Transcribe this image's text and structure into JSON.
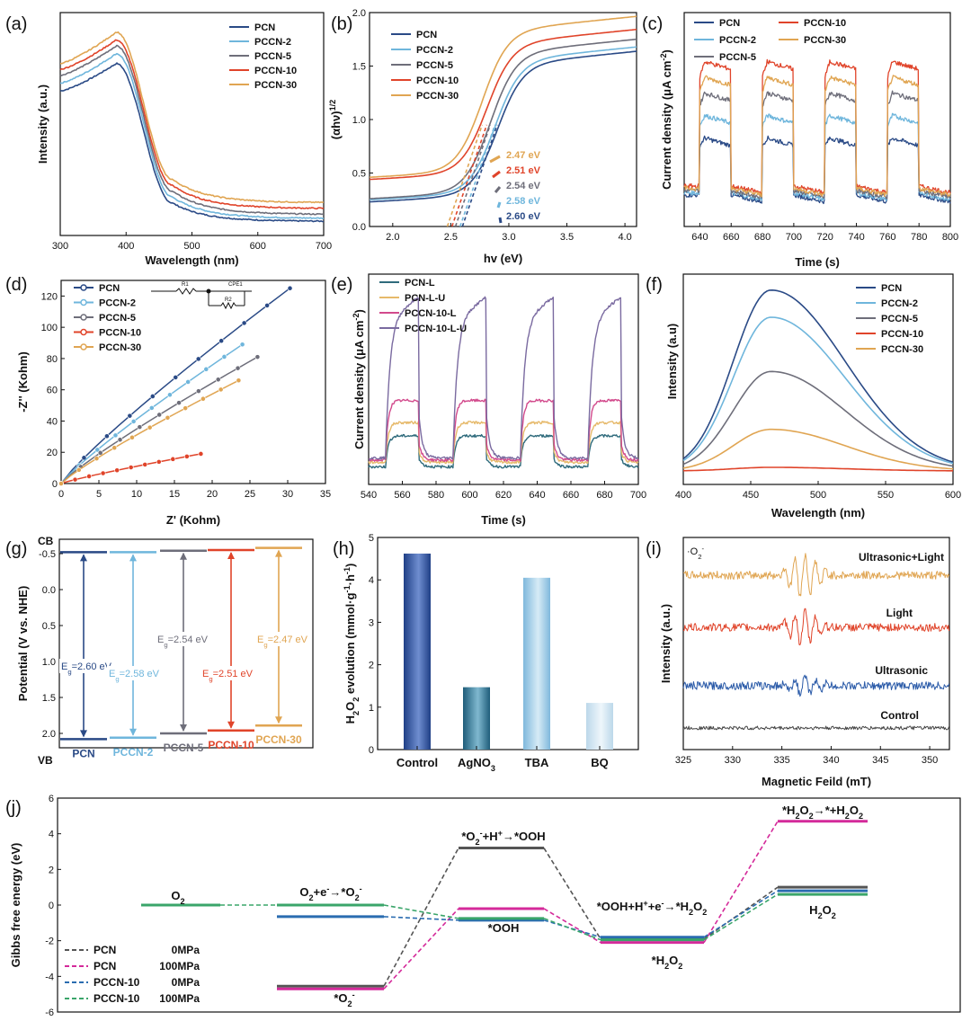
{
  "colors": {
    "PCN": "#2a4a86",
    "PCCN-2": "#6fb6dc",
    "PCCN-5": "#6e6e7a",
    "PCCN-10": "#e0442a",
    "PCCN-30": "#e0a552",
    "PCN-L": "#2f6b7c",
    "PCN-L-U": "#e6b96a",
    "PCCN-10-L": "#d24a8c",
    "PCCN-10-L-U": "#7a6aa0",
    "green": "#3aa56a",
    "magenta": "#d42a9a",
    "blue": "#2a6cb0",
    "gray": "#555555"
  },
  "chart_data": [
    {
      "panel": "(a)",
      "type": "line",
      "xlabel": "Wavelength (nm)",
      "ylabel": "Intensity (a.u.)",
      "xlim": [
        300,
        700
      ],
      "xticks": [
        300,
        400,
        500,
        600,
        700
      ],
      "legend": [
        "PCN",
        "PCCN-2",
        "PCCN-5",
        "PCCN-10",
        "PCCN-30"
      ],
      "series": [
        {
          "name": "PCN",
          "values": [
            0.68,
            0.82,
            0.0,
            0.06,
            0.03,
            0.015
          ]
        },
        {
          "name": "PCCN-2",
          "values": [
            0.72,
            0.87,
            0.0,
            0.09,
            0.05,
            0.03
          ]
        },
        {
          "name": "PCCN-5",
          "values": [
            0.76,
            0.91,
            0.0,
            0.12,
            0.07,
            0.05
          ]
        },
        {
          "name": "PCCN-10",
          "values": [
            0.79,
            0.94,
            0.0,
            0.15,
            0.1,
            0.08
          ]
        },
        {
          "name": "PCCN-30",
          "values": [
            0.82,
            0.98,
            0.0,
            0.18,
            0.13,
            0.11
          ]
        }
      ]
    },
    {
      "panel": "(b)",
      "type": "line",
      "xlabel": "hv (eV)",
      "ylabel": "(αhv)1/2",
      "xlim": [
        1.8,
        4.1
      ],
      "ylim": [
        0,
        2.0
      ],
      "xticks": [
        2.0,
        2.5,
        3.0,
        3.5,
        4.0
      ],
      "yticks": [
        0.0,
        0.5,
        1.0,
        1.5,
        2.0
      ],
      "legend": [
        "PCN",
        "PCCN-2",
        "PCCN-5",
        "PCCN-10",
        "PCCN-30"
      ],
      "series": [
        {
          "name": "PCN",
          "low": 0.23,
          "high": 1.56,
          "bandgap": 2.6
        },
        {
          "name": "PCCN-2",
          "low": 0.25,
          "high": 1.6,
          "bandgap": 2.58
        },
        {
          "name": "PCCN-5",
          "low": 0.26,
          "high": 1.67,
          "bandgap": 2.54
        },
        {
          "name": "PCCN-10",
          "low": 0.44,
          "high": 1.76,
          "bandgap": 2.51
        },
        {
          "name": "PCCN-30",
          "low": 0.46,
          "high": 1.88,
          "bandgap": 2.47
        }
      ],
      "annotations": [
        "2.47 eV",
        "2.51 eV",
        "2.54 eV",
        "2.58 eV",
        "2.60 eV"
      ]
    },
    {
      "panel": "(c)",
      "type": "line",
      "xlabel": "Time (s)",
      "ylabel": "Current density (μA cm-2)",
      "xlim": [
        630,
        800
      ],
      "xticks": [
        640,
        660,
        680,
        700,
        720,
        740,
        760,
        780,
        800
      ],
      "legend": [
        "PCN",
        "PCCN-2",
        "PCCN-5",
        "PCCN-10",
        "PCCN-30"
      ],
      "on_windows": [
        [
          640,
          660
        ],
        [
          680,
          700
        ],
        [
          720,
          740
        ],
        [
          760,
          780
        ]
      ],
      "series": [
        {
          "name": "PCN",
          "dark": 0.14,
          "light": 0.4
        },
        {
          "name": "PCCN-2",
          "dark": 0.15,
          "light": 0.5
        },
        {
          "name": "PCCN-5",
          "dark": 0.16,
          "light": 0.6
        },
        {
          "name": "PCCN-10",
          "dark": 0.18,
          "light": 0.74
        },
        {
          "name": "PCCN-30",
          "dark": 0.17,
          "light": 0.67
        }
      ]
    },
    {
      "panel": "(d)",
      "type": "scatter",
      "xlabel": "Z' (Kohm)",
      "ylabel": "-Z'' (Kohm)",
      "xlim": [
        0,
        35
      ],
      "ylim": [
        0,
        130
      ],
      "xticks": [
        0,
        5,
        10,
        15,
        20,
        25,
        30,
        35
      ],
      "yticks": [
        0,
        20,
        40,
        60,
        80,
        100,
        120
      ],
      "legend": [
        "PCN",
        "PCCN-2",
        "PCCN-5",
        "PCCN-10",
        "PCCN-30"
      ],
      "circuit": [
        "R1",
        "CPE1",
        "R2"
      ],
      "series": [
        {
          "name": "PCN",
          "xmax": 30.3,
          "ymax": 125
        },
        {
          "name": "PCCN-2",
          "xmax": 24.0,
          "ymax": 89
        },
        {
          "name": "PCCN-5",
          "xmax": 26.0,
          "ymax": 81
        },
        {
          "name": "PCCN-10",
          "xmax": 18.5,
          "ymax": 19
        },
        {
          "name": "PCCN-30",
          "xmax": 23.5,
          "ymax": 66
        }
      ]
    },
    {
      "panel": "(e)",
      "type": "line",
      "xlabel": "Time (s)",
      "ylabel": "Current density (μA cm-2)",
      "xlim": [
        540,
        700
      ],
      "xticks": [
        540,
        560,
        580,
        600,
        620,
        640,
        660,
        680,
        700
      ],
      "legend": [
        "PCN-L",
        "PCN-L-U",
        "PCCN-10-L",
        "PCCN-10-L-U"
      ],
      "on_windows": [
        [
          550,
          570
        ],
        [
          590,
          610
        ],
        [
          630,
          650
        ],
        [
          670,
          690
        ]
      ],
      "series": [
        {
          "name": "PCN-L",
          "dark": 0.08,
          "light": 0.22
        },
        {
          "name": "PCN-L-U",
          "dark": 0.1,
          "light": 0.28
        },
        {
          "name": "PCCN-10-L",
          "dark": 0.11,
          "light": 0.38
        },
        {
          "name": "PCCN-10-L-U",
          "dark": 0.12,
          "light": 0.85
        }
      ]
    },
    {
      "panel": "(f)",
      "type": "line",
      "xlabel": "Wavelength (nm)",
      "ylabel": "Intensity (a.u)",
      "xlim": [
        400,
        600
      ],
      "xticks": [
        400,
        450,
        500,
        550,
        600
      ],
      "legend": [
        "PCN",
        "PCCN-2",
        "PCCN-5",
        "PCCN-10",
        "PCCN-30"
      ],
      "series": [
        {
          "name": "PCN",
          "peak": 1.0
        },
        {
          "name": "PCCN-2",
          "peak": 0.85
        },
        {
          "name": "PCCN-5",
          "peak": 0.55
        },
        {
          "name": "PCCN-10",
          "peak": 0.02
        },
        {
          "name": "PCCN-30",
          "peak": 0.23
        }
      ]
    },
    {
      "panel": "(g)",
      "type": "bar",
      "ylabel": "Potential (V vs. NHE)",
      "ylim": [
        -0.7,
        2.2
      ],
      "yticks": [
        -0.5,
        0.0,
        0.5,
        1.0,
        1.5,
        2.0
      ],
      "top_label": "CB",
      "bottom_label": "VB",
      "items": [
        {
          "name": "PCN",
          "cb": -0.52,
          "vb": 2.08,
          "eg": "2.60 eV"
        },
        {
          "name": "PCCN-2",
          "cb": -0.52,
          "vb": 2.06,
          "eg": "2.58 eV"
        },
        {
          "name": "PCCN-5",
          "cb": -0.54,
          "vb": 2.0,
          "eg": "2.54 eV"
        },
        {
          "name": "PCCN-10",
          "cb": -0.55,
          "vb": 1.96,
          "eg": "2.51 eV"
        },
        {
          "name": "PCCN-30",
          "cb": -0.58,
          "vb": 1.89,
          "eg": "2.47 eV"
        }
      ]
    },
    {
      "panel": "(h)",
      "type": "bar",
      "ylabel": "H2O2 evolution (mmol·g-1·h-1)",
      "ylim": [
        0,
        5
      ],
      "yticks": [
        0,
        1,
        2,
        3,
        4,
        5
      ],
      "categories": [
        "Control",
        "AgNO3",
        "TBA",
        "BQ"
      ],
      "values": [
        4.62,
        1.47,
        4.05,
        1.1
      ]
    },
    {
      "panel": "(i)",
      "type": "line",
      "xlabel": "Magnetic Feild (mT)",
      "ylabel": "Intensity (a.u.)",
      "xlim": [
        325,
        352
      ],
      "xticks": [
        325,
        330,
        335,
        340,
        345,
        350
      ],
      "species": "·O2-",
      "series": [
        {
          "name": "Ultrasonic+Light",
          "amplitude": 1.0
        },
        {
          "name": "Light",
          "amplitude": 0.8
        },
        {
          "name": "Ultrasonic",
          "amplitude": 0.45
        },
        {
          "name": "Control",
          "amplitude": 0.0
        }
      ]
    },
    {
      "panel": "(j)",
      "type": "line",
      "ylabel": "Gibbs free energy (eV)",
      "ylim": [
        -6,
        6
      ],
      "yticks": [
        -6,
        -4,
        -2,
        0,
        2,
        4,
        6
      ],
      "steps": [
        "O2",
        "O2+e-→*O2-",
        "*O2-",
        "*O2-+H+→*OOH",
        "*OOH",
        "*OOH+H++e-→*H2O2",
        "*H2O2",
        "*H2O2→*+H2O2",
        "H2O2"
      ],
      "series": [
        {
          "name": "PCN 0MPa",
          "values": [
            0,
            -4.55,
            3.2,
            -1.9,
            1.0
          ]
        },
        {
          "name": "PCN 100MPa",
          "values": [
            0,
            -4.7,
            -0.2,
            -2.1,
            4.7
          ]
        },
        {
          "name": "PCCN-10 0MPa",
          "values": [
            0,
            -0.65,
            -0.85,
            -1.8,
            0.8
          ]
        },
        {
          "name": "PCCN-10 100MPa",
          "values": [
            0,
            0.0,
            -0.75,
            -1.95,
            0.6
          ]
        }
      ],
      "legend_names": [
        "PCN",
        "PCN",
        "PCCN-10",
        "PCCN-10"
      ],
      "legend_press": [
        "0MPa",
        "100MPa",
        "0MPa",
        "100MPa"
      ]
    }
  ]
}
